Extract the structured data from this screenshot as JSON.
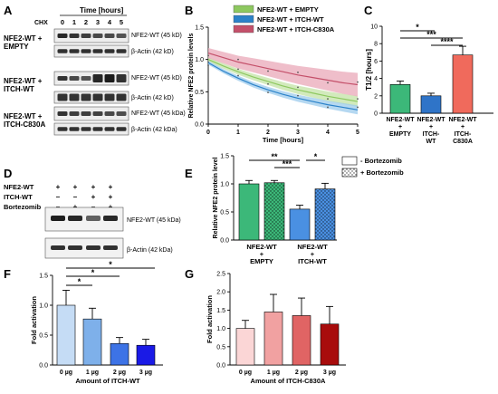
{
  "panels": {
    "A": {
      "letter": "A",
      "time_header": "Time [hours]",
      "chx": "CHX",
      "times": [
        "0",
        "1",
        "2",
        "3",
        "4",
        "5"
      ],
      "blots": [
        {
          "row_label": [
            "NFE2-WT +",
            "EMPTY"
          ],
          "top": "NFE2-WT (45 kD)",
          "bottom": "β-Actin (42 kD)"
        },
        {
          "row_label": [
            "NFE2-WT +",
            "ITCH-WT"
          ],
          "top": "NFE2-WT (45 kD)",
          "bottom": "β-Actin (42 kD)"
        },
        {
          "row_label": [
            "NFE2-WT +",
            "ITCH-C830A"
          ],
          "top": "NFE2-WT (45 kDa)",
          "bottom": "β-Actin (42 kDa)"
        }
      ]
    },
    "D": {
      "letter": "D",
      "rows": [
        {
          "label": "NFE2-WT",
          "signs": [
            "+",
            "+",
            "+",
            "+"
          ]
        },
        {
          "label": "ITCH-WT",
          "signs": [
            "–",
            "–",
            "+",
            "+"
          ]
        },
        {
          "label": "Bortezomib",
          "signs": [
            "–",
            "+",
            "–",
            "+"
          ]
        }
      ],
      "top_band": "NFE2-WT (45 kDa)",
      "bottom_band": "β-Actin (42 kDa)"
    },
    "B_letter": "B",
    "C_letter": "C",
    "E_letter": "E",
    "F_letter": "F",
    "G_letter": "G",
    "E_legend": [
      "- Bortezomib",
      "+ Bortezomib"
    ]
  },
  "chart_data": [
    {
      "id": "B",
      "type": "line",
      "xlabel": "Time [hours]",
      "ylabel": "Relative NFE2 protein levels",
      "xlim": [
        0,
        5
      ],
      "ylim": [
        0.0,
        1.5
      ],
      "xticks": [
        "0",
        "1",
        "2",
        "3",
        "4",
        "5"
      ],
      "yticks": [
        "0.0",
        "0.5",
        "1.0",
        "1.5"
      ],
      "legend_position": "top",
      "series": [
        {
          "name": "NFE2-WT + EMPTY",
          "color": "#8dc85f",
          "band": "#c3e3a6",
          "x": [
            0,
            0.5,
            1,
            1.5,
            2,
            2.5,
            3,
            3.5,
            4,
            4.5,
            5
          ],
          "y": [
            1.0,
            0.9,
            0.81,
            0.73,
            0.66,
            0.59,
            0.53,
            0.48,
            0.43,
            0.39,
            0.35
          ],
          "band_halfwidth": 0.06
        },
        {
          "name": "NFE2-WT + ITCH-WT",
          "color": "#2b82c9",
          "band": "#9ccbec",
          "x": [
            0,
            0.5,
            1,
            1.5,
            2,
            2.5,
            3,
            3.5,
            4,
            4.5,
            5
          ],
          "y": [
            0.95,
            0.82,
            0.71,
            0.61,
            0.53,
            0.46,
            0.4,
            0.35,
            0.3,
            0.26,
            0.22
          ],
          "band_halfwidth": 0.05
        },
        {
          "name": "NFE2-WT + ITCH-C830A",
          "color": "#c4506a",
          "band": "#e9a8b8",
          "x": [
            0,
            0.5,
            1,
            1.5,
            2,
            2.5,
            3,
            3.5,
            4,
            4.5,
            5
          ],
          "y": [
            1.1,
            1.03,
            0.96,
            0.91,
            0.86,
            0.81,
            0.76,
            0.72,
            0.68,
            0.64,
            0.61
          ],
          "band_halfwidth": 0.13
        }
      ]
    },
    {
      "id": "C",
      "type": "bar",
      "ylabel": "T1/2 [hours]",
      "ylim": [
        0,
        10
      ],
      "yticks": [
        "0",
        "2",
        "4",
        "6",
        "8",
        "10"
      ],
      "categories": [
        [
          "NFE2-WT",
          "+",
          "EMPTY"
        ],
        [
          "NFE2-WT",
          "+",
          "ITCH-",
          "WT"
        ],
        [
          "NFE2-WT",
          "+",
          "ITCH-",
          "C830A"
        ]
      ],
      "values": [
        3.3,
        2.0,
        6.7
      ],
      "errors": [
        0.4,
        0.3,
        1.0
      ],
      "colors": [
        "#3cb879",
        "#2f74c8",
        "#f06a5c"
      ],
      "significance": [
        {
          "from": 0,
          "to": 2,
          "label": "*"
        },
        {
          "from": 0,
          "to": 2,
          "label": "***"
        },
        {
          "from": 1,
          "to": 2,
          "label": "****"
        }
      ]
    },
    {
      "id": "E",
      "type": "bar",
      "ylabel": "Relative NFE2 protein level",
      "ylim": [
        0.0,
        1.5
      ],
      "yticks": [
        "0.0",
        "0.5",
        "1.0",
        "1.5"
      ],
      "categories": [
        [
          "NFE2-WT",
          "+",
          "EMPTY"
        ],
        [
          "NFE2-WT",
          "+",
          "ITCH-WT"
        ]
      ],
      "legend_position": "top-right",
      "series": [
        {
          "name": "- Bortezomib",
          "values": [
            1.0,
            0.55
          ],
          "errors": [
            0.06,
            0.07
          ],
          "colors": [
            "#3cb879",
            "#4a90e2"
          ],
          "pattern": false
        },
        {
          "name": "+ Bortezomib",
          "values": [
            1.02,
            0.91
          ],
          "errors": [
            0.04,
            0.1
          ],
          "colors": [
            "#3cb879",
            "#4a90e2"
          ],
          "pattern": true
        }
      ],
      "significance": [
        {
          "from": 0,
          "to": 2,
          "label": "**"
        },
        {
          "from": 1,
          "to": 2,
          "label": "***"
        },
        {
          "from": 2,
          "to": 3,
          "label": "*"
        }
      ]
    },
    {
      "id": "F",
      "type": "bar",
      "xlabel": "Amount of ITCH-WT",
      "ylabel": "Fold activation",
      "ylim": [
        0.0,
        1.5
      ],
      "yticks": [
        "0.0",
        "0.5",
        "1.0",
        "1.5"
      ],
      "categories": [
        "0 µg",
        "1 µg",
        "2 µg",
        "3 µg"
      ],
      "values": [
        1.0,
        0.77,
        0.36,
        0.33
      ],
      "errors": [
        0.25,
        0.18,
        0.1,
        0.1
      ],
      "colors": [
        "#c5dcf5",
        "#7eb0ea",
        "#3d73e6",
        "#1a1ae6"
      ],
      "significance": [
        {
          "from": 0,
          "to": 1,
          "label": "*"
        },
        {
          "from": 0,
          "to": 2,
          "label": "*"
        },
        {
          "from": 0,
          "to": 3,
          "label": "*"
        }
      ]
    },
    {
      "id": "G",
      "type": "bar",
      "xlabel": "Amount of ITCH-C830A",
      "ylabel": "Fold activation",
      "ylim": [
        0.0,
        2.5
      ],
      "yticks": [
        "0.0",
        "0.5",
        "1.0",
        "1.5",
        "2.0",
        "2.5"
      ],
      "categories": [
        "0 µg",
        "1 µg",
        "2 µg",
        "3 µg"
      ],
      "values": [
        1.0,
        1.45,
        1.35,
        1.12
      ],
      "errors": [
        0.22,
        0.48,
        0.48,
        0.48
      ],
      "colors": [
        "#fbd6d6",
        "#f1a1a1",
        "#e06464",
        "#a80c0c"
      ]
    }
  ]
}
